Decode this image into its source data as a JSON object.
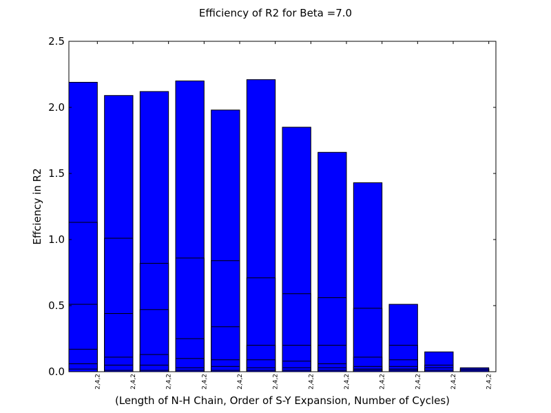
{
  "chart_data": {
    "type": "bar",
    "stacked_overlay": true,
    "title": "Efficiency of R2 for Beta =7.0",
    "xlabel": "(Length of N-H Chain, Order of S-Y Expansion, Number of Cycles)",
    "ylabel": "Effciency in R2",
    "ylim": [
      0,
      2.5
    ],
    "yticks": [
      "0.0",
      "0.5",
      "1.0",
      "1.5",
      "2.0",
      "2.5"
    ],
    "categories": [
      "2,4,2",
      "2,4,2",
      "2,4,2",
      "2,4,2",
      "2,4,2",
      "2,4,2",
      "2,4,2",
      "2,4,2",
      "2,4,2",
      "2,4,2",
      "2,4,2",
      "2,4,2"
    ],
    "bar_color": "#0000ff",
    "grid": false,
    "layers": [
      [
        2.19,
        1.13,
        0.51,
        0.17,
        0.06,
        0.02
      ],
      [
        2.09,
        1.01,
        0.44,
        0.11,
        0.05,
        0.01
      ],
      [
        2.12,
        0.82,
        0.47,
        0.13,
        0.05,
        0.01
      ],
      [
        2.2,
        0.86,
        0.25,
        0.1,
        0.03,
        0.01
      ],
      [
        1.98,
        0.84,
        0.34,
        0.09,
        0.04,
        0.01
      ],
      [
        2.21,
        0.71,
        0.2,
        0.09,
        0.03,
        0.01
      ],
      [
        1.85,
        0.59,
        0.2,
        0.08,
        0.03,
        0.01
      ],
      [
        1.66,
        0.56,
        0.2,
        0.06,
        0.03,
        0.01
      ],
      [
        1.43,
        0.48,
        0.11,
        0.04,
        0.02,
        0.01
      ],
      [
        0.51,
        0.2,
        0.09,
        0.04,
        0.02,
        0.01
      ],
      [
        0.15,
        0.05,
        0.03,
        0.01
      ],
      [
        0.03,
        0.02,
        0.01
      ]
    ]
  }
}
